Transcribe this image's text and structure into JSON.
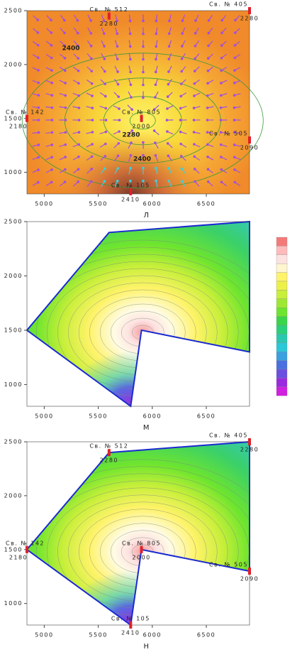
{
  "chart_data": [
    {
      "type": "contour",
      "xlabel": "Л",
      "xlim": [
        4840,
        6900
      ],
      "ylim": [
        800,
        2500
      ],
      "xticks": [
        5000,
        5500,
        6000,
        6500
      ],
      "yticks": [
        1000,
        1500,
        2000,
        2500
      ],
      "arrows": true,
      "wells": [
        {
          "name": "Св. № 512",
          "value": 2280,
          "x": 5600,
          "y": 2450
        },
        {
          "name": "Св. № 405",
          "value": 2280,
          "x": 6900,
          "y": 2500
        },
        {
          "name": "Св. № 142",
          "value": 2180,
          "x": 4840,
          "y": 1500
        },
        {
          "name": "Св. № 805",
          "value": 2000,
          "x": 5900,
          "y": 1500
        },
        {
          "name": "Св. № 505",
          "value": 2090,
          "x": 6900,
          "y": 1300
        },
        {
          "name": "Св. № 105",
          "value": 2410,
          "x": 5800,
          "y": 820
        }
      ],
      "contour_labels": [
        {
          "value": 2400,
          "x": 5247,
          "y": 2151
        },
        {
          "value": 2280,
          "x": 5804,
          "y": 1347
        },
        {
          "value": 2400,
          "x": 5906,
          "y": 1123
        }
      ]
    },
    {
      "type": "contour-region",
      "xlabel": "М",
      "xlim": [
        4840,
        6900
      ],
      "ylim": [
        800,
        2500
      ],
      "xticks": [
        5000,
        5500,
        6000,
        6500
      ],
      "yticks": [
        1000,
        1500,
        2000,
        2500
      ],
      "colorbar": true
    },
    {
      "type": "contour-region",
      "xlabel": "Н",
      "xlim": [
        4840,
        6900
      ],
      "ylim": [
        800,
        2500
      ],
      "xticks": [
        5000,
        5500,
        6000,
        6500
      ],
      "yticks": [
        1000,
        1500,
        2000,
        2500
      ],
      "wells": [
        {
          "name": "Св. № 512",
          "value": 2280,
          "x": 5600,
          "y": 2400
        },
        {
          "name": "Св. № 405",
          "value": 2280,
          "x": 6900,
          "y": 2500
        },
        {
          "name": "Св. № 505",
          "value": 2090,
          "x": 6900,
          "y": 1300
        },
        {
          "name": "Св. № 805",
          "value": 2000,
          "x": 5900,
          "y": 1500
        },
        {
          "name": "Св. № 105",
          "value": 2410,
          "x": 5800,
          "y": 800
        },
        {
          "name": "Св. № 142",
          "value": 2180,
          "x": 4840,
          "y": 1500
        }
      ]
    }
  ]
}
